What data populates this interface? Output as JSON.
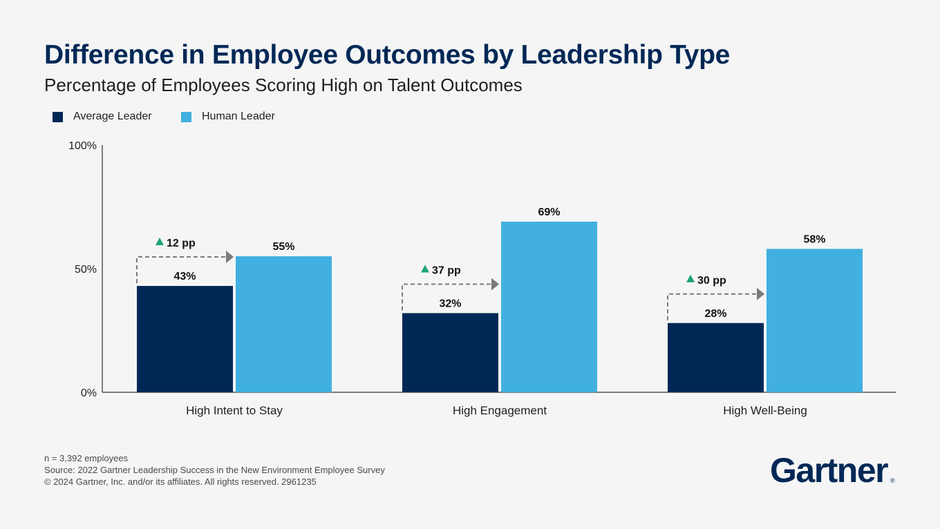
{
  "title": "Difference in Employee Outcomes by Leadership Type",
  "subtitle": "Percentage of Employees Scoring High on Talent Outcomes",
  "colors": {
    "average_leader": "#002856",
    "human_leader": "#41b0e0",
    "increase_arrow": "#1aa37a",
    "connector": "#7a7a7a"
  },
  "chart_data": {
    "type": "bar",
    "categories": [
      "High Intent to Stay",
      "High Engagement",
      "High Well-Being"
    ],
    "series": [
      {
        "name": "Average Leader",
        "values": [
          43,
          32,
          28
        ],
        "labels": [
          "43%",
          "32%",
          "28%"
        ]
      },
      {
        "name": "Human Leader",
        "values": [
          55,
          69,
          58
        ],
        "labels": [
          "55%",
          "69%",
          "58%"
        ]
      }
    ],
    "differences": [
      "12 pp",
      "37 pp",
      "30 pp"
    ],
    "ylim": [
      0,
      100
    ],
    "yticks": [
      0,
      50,
      100
    ],
    "ytick_labels": [
      "0%",
      "50%",
      "100%"
    ],
    "legend_position": "top-left",
    "grid": false
  },
  "footer": {
    "sample": "n = 3,392 employees",
    "source": "Source: 2022 Gartner Leadership Success in the New Environment Employee Survey",
    "copyright": "© 2024 Gartner, Inc. and/or its affiliates. All rights reserved. 2961235"
  },
  "logo": {
    "text": "Gartner",
    "mark": "®"
  }
}
